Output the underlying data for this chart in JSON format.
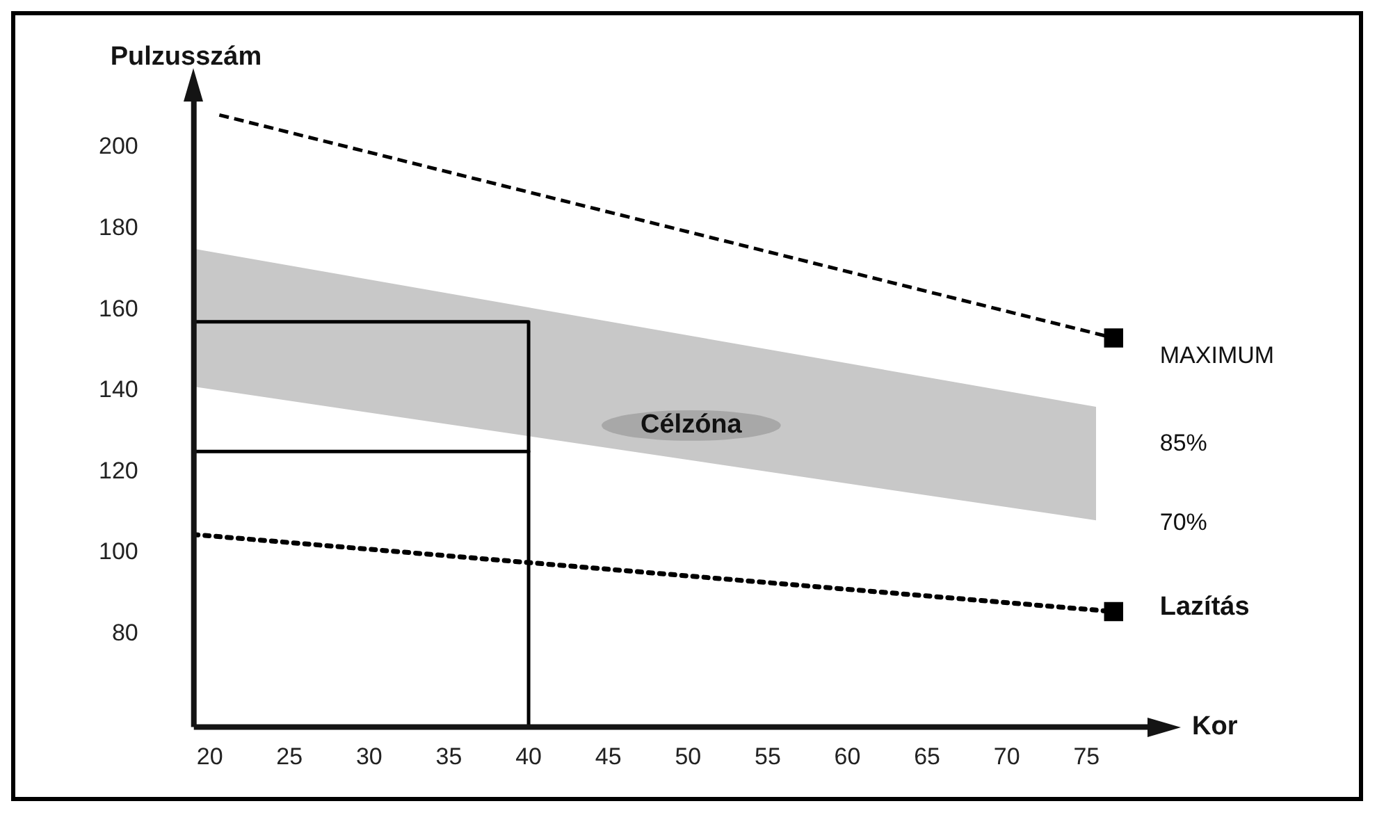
{
  "chart_data": {
    "type": "line",
    "xlabel": "Kor",
    "ylabel": "Pulzusszám",
    "xlim": [
      19,
      79
    ],
    "ylim": [
      57,
      212
    ],
    "xticks": [
      20,
      25,
      30,
      35,
      40,
      45,
      50,
      55,
      60,
      65,
      70,
      75
    ],
    "yticks": [
      80,
      100,
      120,
      140,
      160,
      180,
      200
    ],
    "grid": false,
    "series": [
      {
        "type": "area",
        "color": "#c8c8c8",
        "x": [
          19,
          75.6
        ],
        "values": [
          null,
          null
        ],
        "lower": [
          141,
          108
        ],
        "upper": [
          175,
          136
        ]
      },
      {
        "color": "#000000",
        "line_style": "dashed",
        "x": [
          20.6,
          76.7
        ],
        "values": [
          208,
          153
        ]
      },
      {
        "color": "#000000",
        "line_style": "dotted",
        "x": [
          19,
          76.7
        ],
        "values": [
          104.5,
          85.5
        ]
      },
      {
        "color": "#000000",
        "line_style": "solid",
        "x": [
          19,
          40,
          40
        ],
        "values": [
          157,
          157,
          125
        ]
      },
      {
        "color": "#000000",
        "line_style": "solid",
        "x": [
          19,
          40,
          40
        ],
        "values": [
          125,
          125,
          57
        ]
      },
      {
        "type": "scatter",
        "color": "#000000",
        "marker": "square",
        "x": [
          76.7,
          76.7
        ],
        "values": [
          153,
          85.5
        ]
      }
    ],
    "annotations": [
      "MAXIMUM",
      "85%",
      "70%",
      "Lazítás",
      "Célzóna"
    ]
  }
}
